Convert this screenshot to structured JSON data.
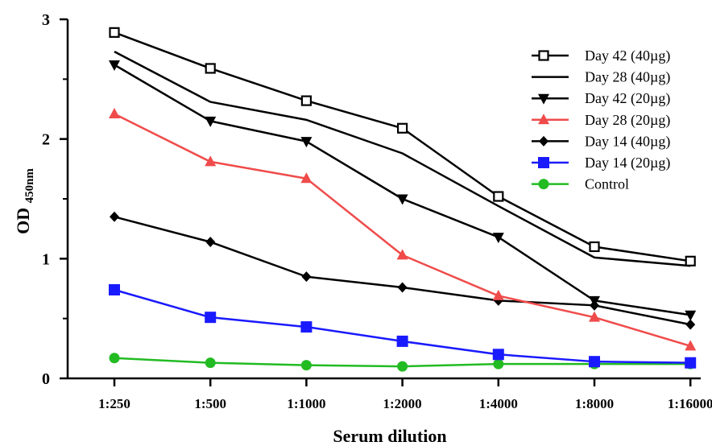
{
  "chart_data": {
    "type": "line",
    "xlabel": "Serum dilution",
    "ylabel_main": "OD",
    "ylabel_sub": "450nm",
    "categories": [
      "1:250",
      "1:500",
      "1:1000",
      "1:2000",
      "1:4000",
      "1:8000",
      "1:16000"
    ],
    "ylim": [
      0,
      3
    ],
    "yticks": [
      0,
      1,
      2,
      3
    ],
    "grid": false,
    "legend_position": "top-right",
    "series": [
      {
        "name": "Day 42 (40µg)",
        "marker": "square-open",
        "color": "#000000",
        "values": [
          2.89,
          2.59,
          2.32,
          2.09,
          1.52,
          1.1,
          0.98
        ]
      },
      {
        "name": "Day 28 (40µg)",
        "marker": "none",
        "color": "#000000",
        "values": [
          2.73,
          2.31,
          2.16,
          1.88,
          1.44,
          1.01,
          0.94
        ]
      },
      {
        "name": "Day 42 (20µg)",
        "marker": "triangle-down",
        "color": "#000000",
        "values": [
          2.62,
          2.15,
          1.98,
          1.5,
          1.18,
          0.65,
          0.53
        ]
      },
      {
        "name": "Day 28 (20µg)",
        "marker": "triangle-up",
        "color": "#f04b4b",
        "values": [
          2.21,
          1.81,
          1.67,
          1.03,
          0.69,
          0.51,
          0.27
        ]
      },
      {
        "name": "Day 14 (40µg)",
        "marker": "diamond",
        "color": "#000000",
        "values": [
          1.35,
          1.14,
          0.85,
          0.76,
          0.65,
          0.61,
          0.45
        ]
      },
      {
        "name": "Day 14 (20µg)",
        "marker": "square",
        "color": "#1a1aff",
        "values": [
          0.74,
          0.51,
          0.43,
          0.31,
          0.2,
          0.14,
          0.13
        ]
      },
      {
        "name": "Control",
        "marker": "circle",
        "color": "#22bb22",
        "values": [
          0.17,
          0.13,
          0.11,
          0.1,
          0.12,
          0.12,
          0.12
        ]
      }
    ]
  }
}
